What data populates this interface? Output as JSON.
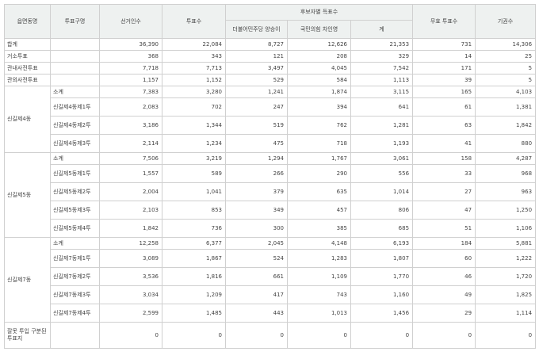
{
  "headers": {
    "district": "읍면동명",
    "vote_type": "투표구명",
    "electors": "선거인수",
    "voters": "투표수",
    "candidate_group": "후보자별 득표수",
    "cand1": "더불어민주당 양승이",
    "cand2": "국민의힘 차인영",
    "total": "계",
    "invalid": "무효 투표수",
    "abstain": "기권수"
  },
  "rows": [
    {
      "district": "합계",
      "vote_type": "",
      "values": [
        "36,390",
        "22,084",
        "8,727",
        "12,626",
        "21,353",
        "731",
        "14,306"
      ]
    },
    {
      "district": "거소투표",
      "vote_type": "",
      "values": [
        "368",
        "343",
        "121",
        "208",
        "329",
        "14",
        "25"
      ]
    },
    {
      "district": "관내사전투표",
      "vote_type": "",
      "values": [
        "7,718",
        "7,713",
        "3,497",
        "4,045",
        "7,542",
        "171",
        "5"
      ]
    },
    {
      "district": "관외사전투표",
      "vote_type": "",
      "values": [
        "1,157",
        "1,152",
        "529",
        "584",
        "1,113",
        "39",
        "5"
      ]
    },
    {
      "district": "신길제4동",
      "vote_type": "소계",
      "values": [
        "7,383",
        "3,280",
        "1,241",
        "1,874",
        "3,115",
        "165",
        "4,103"
      ]
    },
    {
      "district": "",
      "vote_type": "신길제4동제1투",
      "values": [
        "2,083",
        "702",
        "247",
        "394",
        "641",
        "61",
        "1,381"
      ]
    },
    {
      "district": "",
      "vote_type": "신길제4동제2투",
      "values": [
        "3,186",
        "1,344",
        "519",
        "762",
        "1,281",
        "63",
        "1,842"
      ]
    },
    {
      "district": "",
      "vote_type": "신길제4동제3투",
      "values": [
        "2,114",
        "1,234",
        "475",
        "718",
        "1,193",
        "41",
        "880"
      ]
    },
    {
      "district": "신길제5동",
      "vote_type": "소계",
      "values": [
        "7,506",
        "3,219",
        "1,294",
        "1,767",
        "3,061",
        "158",
        "4,287"
      ]
    },
    {
      "district": "",
      "vote_type": "신길제5동제1투",
      "values": [
        "1,557",
        "589",
        "266",
        "290",
        "556",
        "33",
        "968"
      ]
    },
    {
      "district": "",
      "vote_type": "신길제5동제2투",
      "values": [
        "2,004",
        "1,041",
        "379",
        "635",
        "1,014",
        "27",
        "963"
      ]
    },
    {
      "district": "",
      "vote_type": "신길제5동제3투",
      "values": [
        "2,103",
        "853",
        "349",
        "457",
        "806",
        "47",
        "1,250"
      ]
    },
    {
      "district": "",
      "vote_type": "신길제5동제4투",
      "values": [
        "1,842",
        "736",
        "300",
        "385",
        "685",
        "51",
        "1,106"
      ]
    },
    {
      "district": "신길제7동",
      "vote_type": "소계",
      "values": [
        "12,258",
        "6,377",
        "2,045",
        "4,148",
        "6,193",
        "184",
        "5,881"
      ]
    },
    {
      "district": "",
      "vote_type": "신길제7동제1투",
      "values": [
        "3,089",
        "1,867",
        "524",
        "1,283",
        "1,807",
        "60",
        "1,222"
      ]
    },
    {
      "district": "",
      "vote_type": "신길제7동제2투",
      "values": [
        "3,536",
        "1,816",
        "661",
        "1,109",
        "1,770",
        "46",
        "1,720"
      ]
    },
    {
      "district": "",
      "vote_type": "신길제7동제3투",
      "values": [
        "3,034",
        "1,209",
        "417",
        "743",
        "1,160",
        "49",
        "1,825"
      ]
    },
    {
      "district": "",
      "vote_type": "신길제7동제4투",
      "values": [
        "2,599",
        "1,485",
        "443",
        "1,013",
        "1,456",
        "29",
        "1,114"
      ]
    },
    {
      "district": "잘못 투입 구분된 투표지",
      "vote_type": "",
      "values": [
        "0",
        "0",
        "0",
        "0",
        "0",
        "0",
        "0"
      ]
    }
  ]
}
